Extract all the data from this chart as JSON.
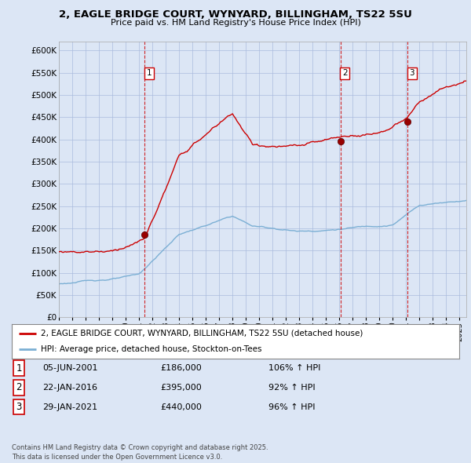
{
  "title_line1": "2, EAGLE BRIDGE COURT, WYNYARD, BILLINGHAM, TS22 5SU",
  "title_line2": "Price paid vs. HM Land Registry's House Price Index (HPI)",
  "xlim_start": 1995.0,
  "xlim_end": 2025.5,
  "ylim_min": 0,
  "ylim_max": 620000,
  "yticks": [
    0,
    50000,
    100000,
    150000,
    200000,
    250000,
    300000,
    350000,
    400000,
    450000,
    500000,
    550000,
    600000
  ],
  "ytick_labels": [
    "£0",
    "£50K",
    "£100K",
    "£150K",
    "£200K",
    "£250K",
    "£300K",
    "£350K",
    "£400K",
    "£450K",
    "£500K",
    "£550K",
    "£600K"
  ],
  "bg_color": "#dce6f5",
  "plot_bg_color": "#dce6f5",
  "red_color": "#cc0000",
  "blue_color": "#7bafd4",
  "sale_dates": [
    2001.43,
    2016.07,
    2021.08
  ],
  "sale_prices": [
    186000,
    395000,
    440000
  ],
  "sale_labels": [
    "1",
    "2",
    "3"
  ],
  "vline_color": "#cc0000",
  "legend_entries": [
    "2, EAGLE BRIDGE COURT, WYNYARD, BILLINGHAM, TS22 5SU (detached house)",
    "HPI: Average price, detached house, Stockton-on-Tees"
  ],
  "table_rows": [
    [
      "1",
      "05-JUN-2001",
      "£186,000",
      "106% ↑ HPI"
    ],
    [
      "2",
      "22-JAN-2016",
      "£395,000",
      "92% ↑ HPI"
    ],
    [
      "3",
      "29-JAN-2021",
      "£440,000",
      "96% ↑ HPI"
    ]
  ],
  "footnote": "Contains HM Land Registry data © Crown copyright and database right 2025.\nThis data is licensed under the Open Government Licence v3.0."
}
